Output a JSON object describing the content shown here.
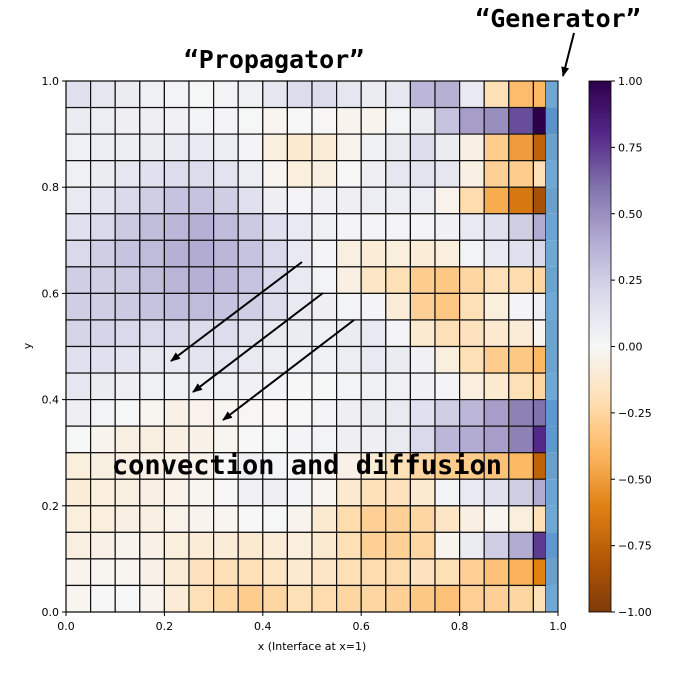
{
  "chart_data": {
    "type": "heatmap",
    "colormap": "PuOr",
    "xlabel": "x (Interface at x=1)",
    "ylabel": "y",
    "xlim": [
      0.0,
      1.0
    ],
    "ylim": [
      0.0,
      1.0
    ],
    "xticks": [
      "0.0",
      "0.2",
      "0.4",
      "0.6",
      "0.8",
      "1.0"
    ],
    "yticks": [
      "0.0",
      "0.2",
      "0.4",
      "0.6",
      "0.8",
      "1.0"
    ],
    "colorbar": {
      "range": [
        -1.0,
        1.0
      ],
      "ticks": [
        "1.00",
        "0.75",
        "0.50",
        "0.25",
        "0.00",
        "−0.25",
        "−0.50",
        "−0.75",
        "−1.00"
      ]
    },
    "x_edges": [
      0,
      0.05,
      0.1,
      0.15,
      0.2,
      0.25,
      0.3,
      0.35,
      0.4,
      0.45,
      0.5,
      0.55,
      0.6,
      0.65,
      0.7,
      0.75,
      0.8,
      0.85,
      0.9,
      0.95,
      0.975,
      1.0
    ],
    "rows_top_to_bottom": [
      [
        0.15,
        0.12,
        0.08,
        0.05,
        0.03,
        0.01,
        0.02,
        0.05,
        0.12,
        0.18,
        0.18,
        0.12,
        0.08,
        0.12,
        0.35,
        0.38,
        0.1,
        -0.2,
        -0.38,
        -0.4
      ],
      [
        0.08,
        0.07,
        0.06,
        0.06,
        0.04,
        0.03,
        0.02,
        0.01,
        -0.02,
        0.0,
        -0.01,
        -0.03,
        -0.03,
        0.03,
        0.08,
        0.3,
        0.45,
        0.5,
        0.7,
        1.0
      ],
      [
        0.05,
        0.07,
        0.07,
        0.08,
        0.1,
        0.1,
        0.07,
        0.02,
        -0.08,
        -0.12,
        -0.1,
        -0.04,
        0.05,
        0.1,
        0.18,
        0.08,
        -0.06,
        -0.3,
        -0.5,
        -0.75
      ],
      [
        0.05,
        0.08,
        0.12,
        0.15,
        0.18,
        0.18,
        0.14,
        0.07,
        -0.02,
        -0.08,
        -0.07,
        0.0,
        0.06,
        0.12,
        0.14,
        0.12,
        -0.06,
        -0.28,
        -0.3,
        -0.2
      ],
      [
        0.1,
        0.13,
        0.2,
        0.25,
        0.3,
        0.3,
        0.25,
        0.15,
        0.06,
        0.02,
        0.04,
        0.06,
        0.07,
        0.07,
        0.07,
        -0.04,
        -0.22,
        -0.45,
        -0.65,
        -0.85
      ],
      [
        0.15,
        0.2,
        0.27,
        0.32,
        0.35,
        0.38,
        0.33,
        0.27,
        0.15,
        0.1,
        0.05,
        0.02,
        0.02,
        0.02,
        0.02,
        0.04,
        0.1,
        0.15,
        0.25,
        0.4
      ],
      [
        0.2,
        0.25,
        0.3,
        0.33,
        0.38,
        0.4,
        0.35,
        0.3,
        0.2,
        0.1,
        0.02,
        -0.07,
        -0.1,
        -0.08,
        -0.1,
        -0.08,
        0.03,
        0.1,
        0.15,
        0.2
      ],
      [
        0.25,
        0.25,
        0.27,
        0.32,
        0.36,
        0.38,
        0.35,
        0.3,
        0.2,
        0.1,
        0.03,
        -0.06,
        -0.15,
        -0.2,
        -0.3,
        -0.32,
        -0.25,
        -0.2,
        -0.22,
        -0.25
      ],
      [
        0.25,
        0.25,
        0.27,
        0.3,
        0.33,
        0.33,
        0.3,
        0.25,
        0.18,
        0.1,
        0.06,
        0.03,
        0.02,
        -0.1,
        -0.28,
        -0.32,
        -0.2,
        -0.08,
        0.02,
        0.05
      ],
      [
        0.22,
        0.22,
        0.2,
        0.2,
        0.2,
        0.18,
        0.18,
        0.14,
        0.1,
        0.08,
        0.05,
        0.08,
        0.1,
        0.02,
        -0.12,
        -0.2,
        -0.18,
        -0.12,
        -0.1,
        -0.02
      ],
      [
        0.15,
        0.15,
        0.13,
        0.12,
        0.1,
        0.13,
        0.12,
        0.1,
        0.07,
        0.05,
        0.05,
        0.07,
        0.1,
        0.08,
        0.04,
        -0.08,
        -0.2,
        -0.3,
        -0.32,
        -0.4
      ],
      [
        0.12,
        0.08,
        0.06,
        0.05,
        0.05,
        0.05,
        0.05,
        0.04,
        0.02,
        0.0,
        0.01,
        0.03,
        0.05,
        0.05,
        0.04,
        0.02,
        -0.08,
        -0.12,
        -0.2,
        -0.25
      ],
      [
        0.06,
        0.03,
        0.01,
        -0.02,
        -0.05,
        -0.04,
        -0.02,
        -0.01,
        -0.01,
        0.0,
        0.02,
        0.06,
        0.08,
        0.1,
        0.15,
        0.25,
        0.35,
        0.45,
        0.55,
        0.6
      ],
      [
        0.01,
        -0.03,
        -0.06,
        -0.07,
        -0.06,
        -0.05,
        -0.02,
        0.0,
        0.01,
        0.02,
        0.03,
        0.06,
        0.06,
        0.1,
        0.2,
        0.35,
        0.4,
        0.45,
        0.55,
        0.8
      ],
      [
        -0.08,
        -0.07,
        -0.06,
        -0.05,
        -0.04,
        -0.04,
        0.0,
        0.05,
        0.03,
        0.0,
        -0.02,
        -0.05,
        -0.1,
        -0.2,
        -0.25,
        -0.3,
        -0.3,
        -0.35,
        -0.4,
        -0.75
      ],
      [
        -0.1,
        -0.08,
        -0.07,
        -0.06,
        -0.04,
        -0.02,
        0.0,
        0.04,
        0.06,
        0.02,
        -0.02,
        -0.12,
        -0.2,
        -0.18,
        -0.12,
        0.03,
        0.1,
        0.15,
        0.25,
        0.4
      ],
      [
        -0.08,
        -0.08,
        -0.06,
        -0.06,
        -0.04,
        -0.03,
        -0.02,
        0.0,
        0.01,
        -0.03,
        -0.12,
        -0.22,
        -0.28,
        -0.28,
        -0.25,
        -0.15,
        -0.06,
        -0.02,
        -0.08,
        -0.2
      ],
      [
        -0.07,
        -0.05,
        -0.03,
        -0.05,
        -0.08,
        -0.1,
        -0.1,
        -0.12,
        -0.1,
        -0.08,
        -0.12,
        -0.2,
        -0.28,
        -0.28,
        -0.25,
        -0.03,
        0.08,
        0.25,
        0.4,
        0.75
      ],
      [
        -0.03,
        -0.02,
        -0.02,
        -0.05,
        -0.1,
        -0.18,
        -0.2,
        -0.2,
        -0.15,
        -0.12,
        -0.15,
        -0.2,
        -0.22,
        -0.22,
        -0.18,
        -0.2,
        -0.28,
        -0.35,
        -0.42,
        -0.6
      ],
      [
        -0.02,
        0.0,
        0.0,
        -0.03,
        -0.1,
        -0.2,
        -0.25,
        -0.3,
        -0.25,
        -0.2,
        -0.22,
        -0.25,
        -0.25,
        -0.28,
        -0.32,
        -0.35,
        -0.28,
        -0.28,
        -0.25,
        -0.2
      ]
    ],
    "generator_column_colors": [
      "#6fa6d2",
      "#5b92cc",
      "#6b9fcc",
      "#6fa8d6",
      "#6b9fcc",
      "#6aa5d6",
      "#6fa8d6",
      "#6ca4d0",
      "#6fa8d6",
      "#6ca4d0",
      "#6ca4d0",
      "#6fa8d6",
      "#5f98ce",
      "#5f98ce",
      "#6b9fcc",
      "#6aa5d6",
      "#6fa8d6",
      "#5f98ce",
      "#6b9fcc",
      "#6fa8d6"
    ],
    "annotations": [
      {
        "text": "“Propagator”"
      },
      {
        "text": "“Generator”"
      },
      {
        "text": "convection and diffusion"
      }
    ]
  }
}
